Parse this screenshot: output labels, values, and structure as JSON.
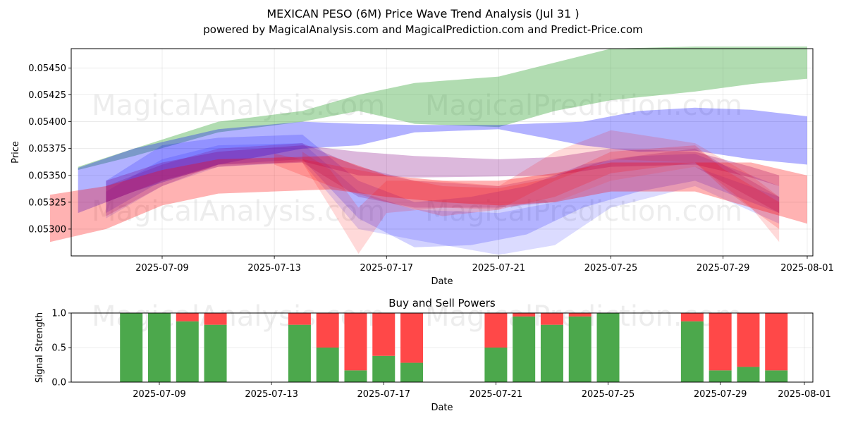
{
  "chart_data": [
    {
      "type": "area",
      "title": "MEXICAN PESO (6M) Price Wave Trend Analysis (Jul 31 )",
      "subtitle": "powered by MagicalAnalysis.com and MagicalPrediction.com and Predict-Price.com",
      "xlabel": "Date",
      "ylabel": "Price",
      "x_ticks": [
        "2025-07-09",
        "2025-07-13",
        "2025-07-17",
        "2025-07-21",
        "2025-07-25",
        "2025-07-29",
        "2025-08-01"
      ],
      "y_ticks": [
        "0.05300",
        "0.05325",
        "0.05350",
        "0.05375",
        "0.05400",
        "0.05425",
        "0.05450"
      ],
      "xlim": [
        "2025-07-05",
        "2025-08-01"
      ],
      "ylim": [
        0.05275,
        0.05468
      ],
      "grid": true,
      "watermarks": [
        "MagicalAnalysis.com",
        "MagicalPrediction.com"
      ],
      "bands": [
        {
          "color": "#2ca02c",
          "opacity": 0.37,
          "dates": [
            "2025-07-06",
            "2025-07-08",
            "2025-07-11",
            "2025-07-14",
            "2025-07-16",
            "2025-07-18",
            "2025-07-21",
            "2025-07-23",
            "2025-07-25",
            "2025-07-28",
            "2025-07-30",
            "2025-08-01"
          ],
          "upper": [
            0.05358,
            0.05375,
            0.054,
            0.0541,
            0.05425,
            0.05436,
            0.05442,
            0.05455,
            0.05468,
            0.0547,
            0.0547,
            0.0547
          ],
          "lower": [
            0.05355,
            0.05368,
            0.0539,
            0.054,
            0.0541,
            0.05398,
            0.05395,
            0.0541,
            0.0542,
            0.05428,
            0.05435,
            0.0544
          ]
        },
        {
          "color": "#0000ff",
          "opacity": 0.3,
          "dates": [
            "2025-07-06",
            "2025-07-08",
            "2025-07-11",
            "2025-07-14",
            "2025-07-16",
            "2025-07-18",
            "2025-07-21",
            "2025-07-24",
            "2025-07-26",
            "2025-07-28",
            "2025-07-30",
            "2025-08-01"
          ],
          "upper": [
            0.05357,
            0.05375,
            0.05393,
            0.054,
            0.05398,
            0.05397,
            0.05397,
            0.054,
            0.0541,
            0.05413,
            0.05411,
            0.05405
          ],
          "lower": [
            0.05315,
            0.05335,
            0.0536,
            0.05375,
            0.05378,
            0.0539,
            0.05393,
            0.05378,
            0.05372,
            0.05373,
            0.05365,
            0.0536
          ]
        },
        {
          "color": "#0000ff",
          "opacity": 0.18,
          "dates": [
            "2025-07-07",
            "2025-07-09",
            "2025-07-11",
            "2025-07-14",
            "2025-07-16",
            "2025-07-18",
            "2025-07-20",
            "2025-07-22",
            "2025-07-24",
            "2025-07-26",
            "2025-07-28",
            "2025-07-31"
          ],
          "upper": [
            0.05345,
            0.05378,
            0.05385,
            0.05388,
            0.05345,
            0.05325,
            0.0533,
            0.0534,
            0.0536,
            0.05368,
            0.0537,
            0.0534
          ],
          "lower": [
            0.05315,
            0.05345,
            0.0536,
            0.05365,
            0.0531,
            0.05283,
            0.05285,
            0.05295,
            0.0532,
            0.05335,
            0.05345,
            0.05315
          ]
        },
        {
          "color": "#0000ff",
          "opacity": 0.14,
          "dates": [
            "2025-07-07",
            "2025-07-09",
            "2025-07-11",
            "2025-07-14",
            "2025-07-16",
            "2025-07-18",
            "2025-07-21",
            "2025-07-23",
            "2025-07-25",
            "2025-07-28",
            "2025-07-31"
          ],
          "upper": [
            0.05335,
            0.05365,
            0.05378,
            0.0538,
            0.05335,
            0.05318,
            0.05315,
            0.05325,
            0.05345,
            0.05358,
            0.0533
          ],
          "lower": [
            0.0531,
            0.0534,
            0.05358,
            0.05362,
            0.053,
            0.0529,
            0.05276,
            0.05285,
            0.0532,
            0.0534,
            0.05305
          ]
        },
        {
          "color": "#800080",
          "opacity": 0.28,
          "dates": [
            "2025-07-07",
            "2025-07-09",
            "2025-07-11",
            "2025-07-14",
            "2025-07-16",
            "2025-07-18",
            "2025-07-21",
            "2025-07-23",
            "2025-07-25",
            "2025-07-28",
            "2025-07-30",
            "2025-07-31"
          ],
          "upper": [
            0.05345,
            0.05362,
            0.05372,
            0.05378,
            0.05372,
            0.05368,
            0.05365,
            0.05367,
            0.05375,
            0.05372,
            0.05358,
            0.0535
          ],
          "lower": [
            0.05325,
            0.05345,
            0.05358,
            0.05363,
            0.0535,
            0.05348,
            0.05349,
            0.0535,
            0.05358,
            0.0536,
            0.05348,
            0.0534
          ]
        },
        {
          "color": "#800080",
          "opacity": 0.22,
          "dates": [
            "2025-07-07",
            "2025-07-09",
            "2025-07-11",
            "2025-07-14",
            "2025-07-16",
            "2025-07-18",
            "2025-07-21",
            "2025-07-23",
            "2025-07-25",
            "2025-07-28",
            "2025-07-31"
          ],
          "upper": [
            0.0534,
            0.0536,
            0.05375,
            0.0538,
            0.05358,
            0.05345,
            0.0534,
            0.0535,
            0.05365,
            0.05375,
            0.0533
          ],
          "lower": [
            0.05312,
            0.0534,
            0.0536,
            0.05362,
            0.0533,
            0.0532,
            0.0532,
            0.05325,
            0.05345,
            0.05358,
            0.05315
          ]
        },
        {
          "color": "#ff0000",
          "opacity": 0.3,
          "dates": [
            "2025-07-05",
            "2025-07-07",
            "2025-07-09",
            "2025-07-11",
            "2025-07-15",
            "2025-07-17",
            "2025-07-19",
            "2025-07-21",
            "2025-07-23",
            "2025-07-25",
            "2025-07-28",
            "2025-07-30",
            "2025-08-01"
          ],
          "upper": [
            0.05332,
            0.0534,
            0.05355,
            0.05365,
            0.05368,
            0.0535,
            0.05345,
            0.05345,
            0.05352,
            0.05362,
            0.05362,
            0.05362,
            0.0535
          ],
          "lower": [
            0.05288,
            0.053,
            0.05322,
            0.05333,
            0.05337,
            0.0533,
            0.05325,
            0.05322,
            0.05325,
            0.05335,
            0.05335,
            0.0532,
            0.05305
          ]
        },
        {
          "color": "#ff0000",
          "opacity": 0.15,
          "dates": [
            "2025-07-14",
            "2025-07-15",
            "2025-07-16",
            "2025-07-17",
            "2025-07-19",
            "2025-07-21",
            "2025-07-23",
            "2025-07-25",
            "2025-07-28",
            "2025-07-30",
            "2025-07-31"
          ],
          "upper": [
            0.05372,
            0.05355,
            0.0532,
            0.05345,
            0.05345,
            0.0534,
            0.05372,
            0.05392,
            0.0538,
            0.0535,
            0.0533
          ],
          "lower": [
            0.05362,
            0.0532,
            0.05277,
            0.05315,
            0.0532,
            0.05318,
            0.05345,
            0.05365,
            0.05362,
            0.0532,
            0.05288
          ]
        },
        {
          "color": "#ff0000",
          "opacity": 0.18,
          "dates": [
            "2025-07-13",
            "2025-07-15",
            "2025-07-17",
            "2025-07-19",
            "2025-07-21",
            "2025-07-23",
            "2025-07-25",
            "2025-07-28",
            "2025-07-29",
            "2025-07-31"
          ],
          "upper": [
            0.0537,
            0.0536,
            0.0535,
            0.0534,
            0.05338,
            0.05348,
            0.05372,
            0.05378,
            0.05356,
            0.05325
          ],
          "lower": [
            0.0536,
            0.0534,
            0.05325,
            0.05312,
            0.05318,
            0.0533,
            0.05352,
            0.05362,
            0.05338,
            0.053
          ]
        }
      ]
    },
    {
      "type": "bar",
      "title": "Buy and Sell Powers",
      "xlabel": "Date",
      "ylabel": "Signal Strength",
      "x_ticks": [
        "2025-07-09",
        "2025-07-13",
        "2025-07-17",
        "2025-07-21",
        "2025-07-25",
        "2025-07-29",
        "2025-08-01"
      ],
      "y_ticks": [
        "0.0",
        "0.5",
        "1.0"
      ],
      "ylim": [
        0,
        1
      ],
      "grid": true,
      "watermarks": [
        "MagicalAnalysis.com",
        "MagicalPrediction.com"
      ],
      "buy_color": "#4ca84c",
      "sell_color": "#ff4848",
      "categories": [
        "2025-07-08",
        "2025-07-09",
        "2025-07-10",
        "2025-07-11",
        "2025-07-14",
        "2025-07-15",
        "2025-07-16",
        "2025-07-17",
        "2025-07-18",
        "2025-07-21",
        "2025-07-22",
        "2025-07-23",
        "2025-07-24",
        "2025-07-25",
        "2025-07-28",
        "2025-07-29",
        "2025-07-30",
        "2025-07-31"
      ],
      "series": [
        {
          "name": "Buy",
          "values": [
            1.0,
            1.0,
            0.88,
            0.83,
            0.83,
            0.5,
            0.17,
            0.38,
            0.28,
            0.5,
            0.95,
            0.83,
            0.95,
            1.0,
            0.88,
            0.17,
            0.22,
            0.17
          ]
        },
        {
          "name": "Sell",
          "values": [
            0.0,
            0.0,
            0.12,
            0.17,
            0.17,
            0.5,
            0.83,
            0.62,
            0.72,
            0.5,
            0.05,
            0.17,
            0.05,
            0.0,
            0.12,
            0.83,
            0.78,
            0.83
          ]
        }
      ]
    }
  ]
}
